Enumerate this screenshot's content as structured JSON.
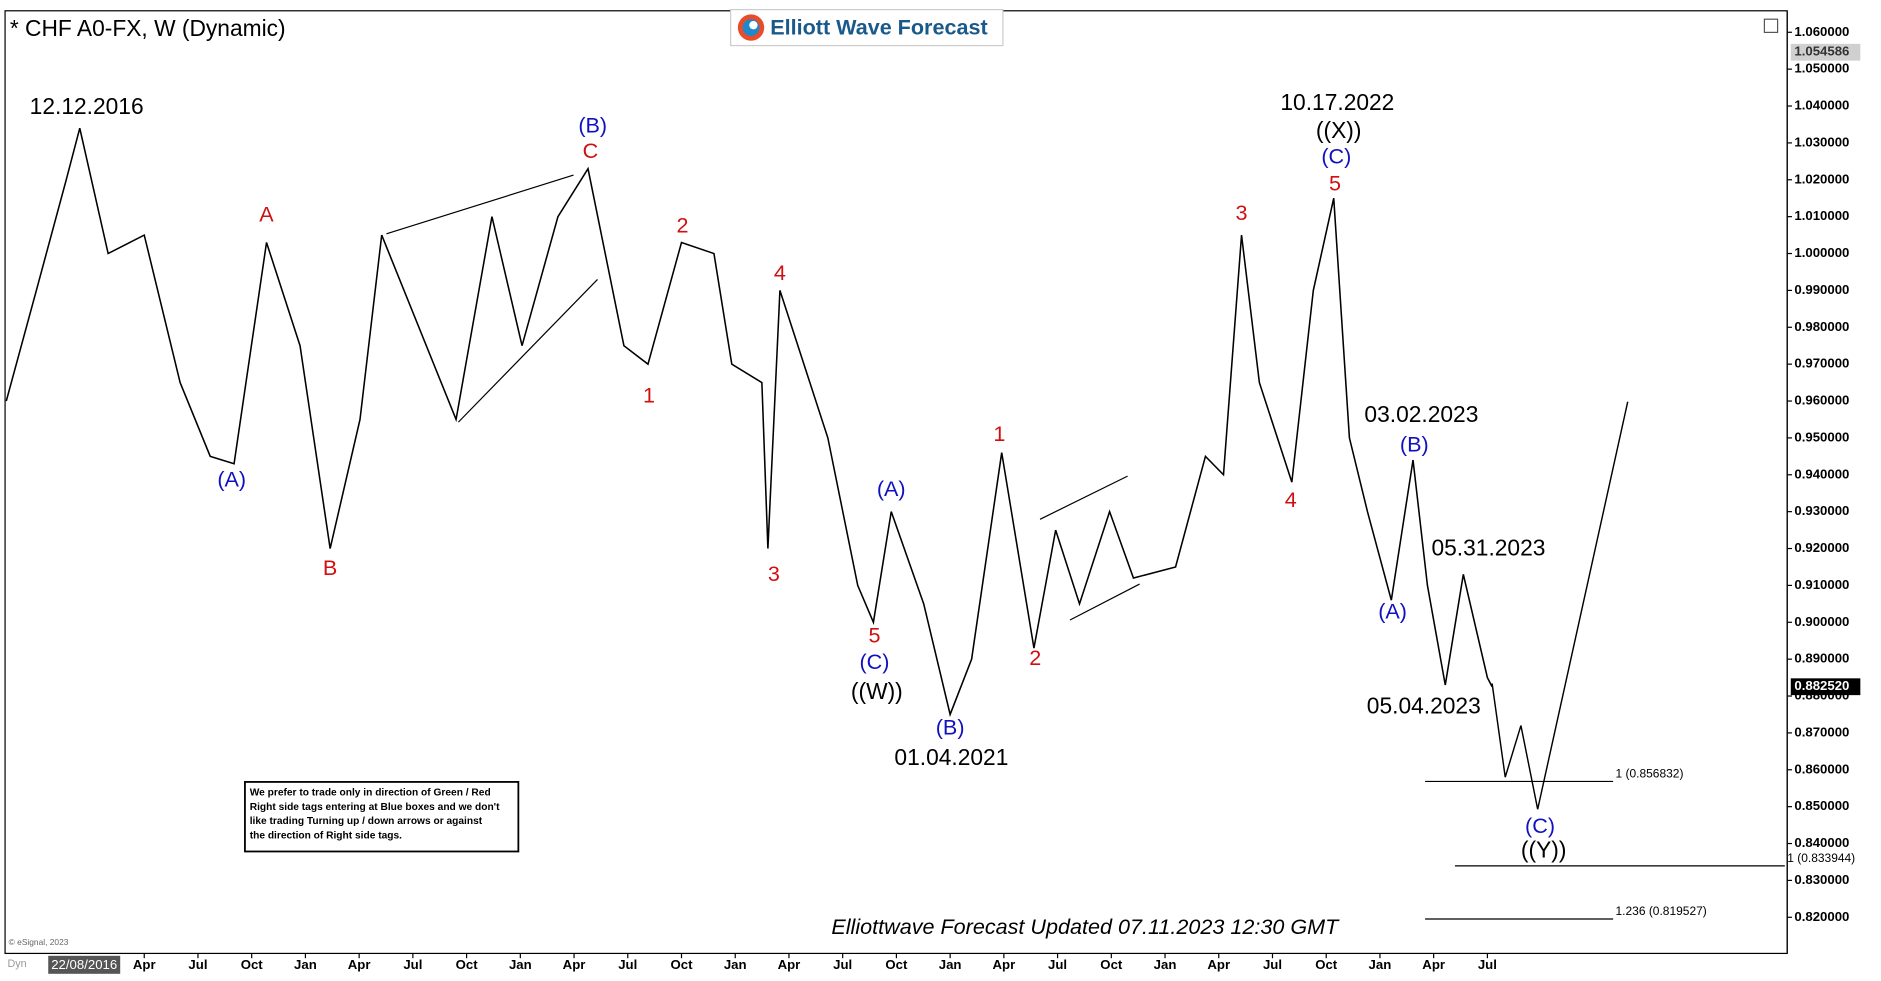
{
  "chart_data": {
    "type": "line",
    "title": "* CHF A0-FX, W (Dynamic)",
    "logo": "Elliott Wave Forecast",
    "footer": "Elliottwave Forecast Updated 07.11.2023 12:30 GMT",
    "copyright": "© eSignal, 2023",
    "mode_label": "Dyn",
    "cursor_date": "22/08/2016",
    "note": [
      "We prefer to trade only in direction of Green / Red",
      "Right side tags entering at Blue boxes and we don't",
      "like trading Turning up / down arrows or against",
      "the direction of Right side tags."
    ],
    "xlim": [
      2016.608,
      2024.895
    ],
    "ylim": [
      0.8102,
      1.0655
    ],
    "xticks": [
      {
        "value": 2017.25,
        "label": "Apr"
      },
      {
        "value": 2017.5,
        "label": "Jul"
      },
      {
        "value": 2017.75,
        "label": "Oct"
      },
      {
        "value": 2018.0,
        "label": "Jan"
      },
      {
        "value": 2018.25,
        "label": "Apr"
      },
      {
        "value": 2018.5,
        "label": "Jul"
      },
      {
        "value": 2018.75,
        "label": "Oct"
      },
      {
        "value": 2019.0,
        "label": "Jan"
      },
      {
        "value": 2019.25,
        "label": "Apr"
      },
      {
        "value": 2019.5,
        "label": "Jul"
      },
      {
        "value": 2019.75,
        "label": "Oct"
      },
      {
        "value": 2020.0,
        "label": "Jan"
      },
      {
        "value": 2020.25,
        "label": "Apr"
      },
      {
        "value": 2020.5,
        "label": "Jul"
      },
      {
        "value": 2020.75,
        "label": "Oct"
      },
      {
        "value": 2021.0,
        "label": "Jan"
      },
      {
        "value": 2021.25,
        "label": "Apr"
      },
      {
        "value": 2021.5,
        "label": "Jul"
      },
      {
        "value": 2021.75,
        "label": "Oct"
      },
      {
        "value": 2022.0,
        "label": "Jan"
      },
      {
        "value": 2022.25,
        "label": "Apr"
      },
      {
        "value": 2022.5,
        "label": "Jul"
      },
      {
        "value": 2022.75,
        "label": "Oct"
      },
      {
        "value": 2023.0,
        "label": "Jan"
      },
      {
        "value": 2023.25,
        "label": "Apr"
      },
      {
        "value": 2023.5,
        "label": "Jul"
      }
    ],
    "yticks": [
      {
        "value": 0.82,
        "label": "0.820000"
      },
      {
        "value": 0.83,
        "label": "0.830000"
      },
      {
        "value": 0.84,
        "label": "0.840000"
      },
      {
        "value": 0.85,
        "label": "0.850000"
      },
      {
        "value": 0.86,
        "label": "0.860000"
      },
      {
        "value": 0.87,
        "label": "0.870000"
      },
      {
        "value": 0.88,
        "label": "0.880000"
      },
      {
        "value": 0.89,
        "label": "0.890000"
      },
      {
        "value": 0.9,
        "label": "0.900000"
      },
      {
        "value": 0.91,
        "label": "0.910000"
      },
      {
        "value": 0.92,
        "label": "0.920000"
      },
      {
        "value": 0.93,
        "label": "0.930000"
      },
      {
        "value": 0.94,
        "label": "0.940000"
      },
      {
        "value": 0.95,
        "label": "0.950000"
      },
      {
        "value": 0.96,
        "label": "0.960000"
      },
      {
        "value": 0.97,
        "label": "0.970000"
      },
      {
        "value": 0.98,
        "label": "0.980000"
      },
      {
        "value": 0.99,
        "label": "0.990000"
      },
      {
        "value": 1.0,
        "label": "1.000000"
      },
      {
        "value": 1.01,
        "label": "1.010000"
      },
      {
        "value": 1.02,
        "label": "1.020000"
      },
      {
        "value": 1.03,
        "label": "1.030000"
      },
      {
        "value": 1.04,
        "label": "1.040000"
      },
      {
        "value": 1.05,
        "label": "1.050000"
      },
      {
        "value": 1.06,
        "label": "1.060000"
      }
    ],
    "series": [
      {
        "name": "CHF A0-FX",
        "color": "#000000",
        "x": [
          2016.608,
          2016.748,
          2016.887,
          2016.95,
          2017.082,
          2017.25,
          2017.417,
          2017.557,
          2017.668,
          2017.819,
          2017.975,
          2018.115,
          2018.254,
          2018.355,
          2018.701,
          2018.868,
          2019.008,
          2019.175,
          2019.315,
          2019.482,
          2019.594,
          2019.75,
          2019.901,
          2019.984,
          2020.124,
          2020.152,
          2020.208,
          2020.431,
          2020.57,
          2020.643,
          2020.726,
          2020.877,
          2021.0,
          2021.1,
          2021.24,
          2021.39,
          2021.491,
          2021.602,
          2021.742,
          2021.853,
          2022.049,
          2022.188,
          2022.272,
          2022.356,
          2022.439,
          2022.59,
          2022.69,
          2022.785,
          2022.858,
          2022.942,
          2023.053,
          2023.154,
          2023.221,
          2023.304,
          2023.388,
          2023.5,
          2023.522
        ],
        "values": [
          0.96,
          0.99,
          1.02,
          1.034,
          1.0,
          1.005,
          0.965,
          0.945,
          0.943,
          1.003,
          0.975,
          0.92,
          0.955,
          1.005,
          0.955,
          1.01,
          0.975,
          1.01,
          1.023,
          0.975,
          0.97,
          1.003,
          1.0,
          0.97,
          0.965,
          0.92,
          0.99,
          0.95,
          0.91,
          0.9,
          0.93,
          0.905,
          0.875,
          0.89,
          0.946,
          0.893,
          0.925,
          0.905,
          0.93,
          0.912,
          0.915,
          0.945,
          0.94,
          1.005,
          0.965,
          0.938,
          0.99,
          1.015,
          0.95,
          0.93,
          0.906,
          0.944,
          0.91,
          0.883,
          0.913,
          0.885,
          0.88252
        ]
      },
      {
        "name": "Projection",
        "color": "#000000",
        "x": [
          2023.522,
          2023.583,
          2023.656,
          2023.734,
          2024.153
        ],
        "values": [
          0.8834,
          0.858,
          0.872,
          0.8493,
          0.9598
        ]
      }
    ],
    "fib_levels": [
      {
        "value": 0.856832,
        "label": "1 (0.856832)",
        "x": [
          2023.21,
          2024.085
        ]
      },
      {
        "value": 0.833944,
        "label": "1 (0.833944)",
        "x": [
          2023.349,
          2024.884
        ]
      },
      {
        "value": 0.819527,
        "label": "1.236 (0.819527)",
        "x": [
          2023.21,
          2024.085
        ]
      }
    ],
    "price_tags": [
      {
        "value": 1.054586,
        "label": "1.054586",
        "color": "#d0d0d0"
      },
      {
        "value": 0.88252,
        "label": "0.882520",
        "color": "#000000"
      }
    ],
    "annotations": [
      {
        "text": "12.12.2016",
        "color": "#000000",
        "x": 2016.982,
        "y": 1.0395
      },
      {
        "text": "(A)",
        "color": "#1010c0",
        "x": 2017.657,
        "y": 0.9384
      },
      {
        "text": "A",
        "color": "#d01010",
        "x": 2017.819,
        "y": 1.0102
      },
      {
        "text": "B",
        "color": "#d01010",
        "x": 2018.115,
        "y": 0.9143
      },
      {
        "text": "(B)",
        "color": "#1010c0",
        "x": 2019.337,
        "y": 1.0343
      },
      {
        "text": "C",
        "color": "#d01010",
        "x": 2019.326,
        "y": 1.0275
      },
      {
        "text": "1",
        "color": "#d01010",
        "x": 2019.599,
        "y": 0.9611
      },
      {
        "text": "2",
        "color": "#d01010",
        "x": 2019.755,
        "y": 1.0073
      },
      {
        "text": "4",
        "color": "#d01010",
        "x": 2020.208,
        "y": 0.9943
      },
      {
        "text": "3",
        "color": "#d01010",
        "x": 2020.18,
        "y": 0.9127
      },
      {
        "text": "(A)",
        "color": "#1010c0",
        "x": 2020.726,
        "y": 0.9358
      },
      {
        "text": "5",
        "color": "#d01010",
        "x": 2020.648,
        "y": 0.8961
      },
      {
        "text": "(C)",
        "color": "#1010c0",
        "x": 2020.648,
        "y": 0.8889
      },
      {
        "text": "((W))",
        "color": "#000000",
        "x": 2020.659,
        "y": 0.8808
      },
      {
        "text": "(B)",
        "color": "#1010c0",
        "x": 2021.0,
        "y": 0.8711
      },
      {
        "text": "01.04.2021",
        "color": "#000000",
        "x": 2021.006,
        "y": 0.8629
      },
      {
        "text": "1",
        "color": "#d01010",
        "x": 2021.229,
        "y": 0.9507
      },
      {
        "text": "2",
        "color": "#d01010",
        "x": 2021.396,
        "y": 0.8899
      },
      {
        "text": "3",
        "color": "#d01010",
        "x": 2022.356,
        "y": 1.0106
      },
      {
        "text": "4",
        "color": "#d01010",
        "x": 2022.585,
        "y": 0.9328
      },
      {
        "text": "10.17.2022",
        "color": "#000000",
        "x": 2022.802,
        "y": 1.0405
      },
      {
        "text": "((X))",
        "color": "#000000",
        "x": 2022.808,
        "y": 1.033
      },
      {
        "text": "(C)",
        "color": "#1010c0",
        "x": 2022.797,
        "y": 1.0259
      },
      {
        "text": "5",
        "color": "#d01010",
        "x": 2022.791,
        "y": 1.0187
      },
      {
        "text": "03.02.2023",
        "color": "#000000",
        "x": 2023.193,
        "y": 0.9559
      },
      {
        "text": "(B)",
        "color": "#1010c0",
        "x": 2023.16,
        "y": 0.9478
      },
      {
        "text": "05.31.2023",
        "color": "#000000",
        "x": 2023.505,
        "y": 0.9198
      },
      {
        "text": "(A)",
        "color": "#1010c0",
        "x": 2023.059,
        "y": 0.9026
      },
      {
        "text": "05.04.2023",
        "color": "#000000",
        "x": 2023.204,
        "y": 0.8769
      },
      {
        "text": "(C)",
        "color": "#1010c0",
        "x": 2023.745,
        "y": 0.8444
      },
      {
        "text": "((Y))",
        "color": "#000000",
        "x": 2023.762,
        "y": 0.8379
      }
    ]
  }
}
